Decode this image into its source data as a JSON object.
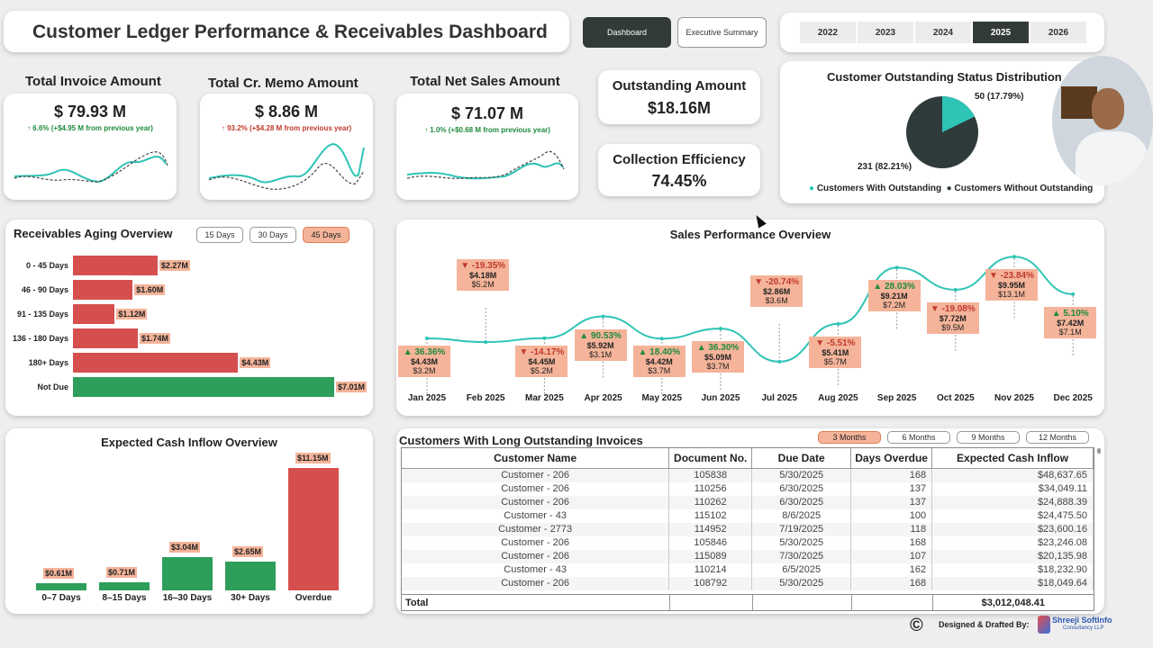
{
  "header": {
    "title": "Customer Ledger Performance & Receivables Dashboard"
  },
  "nav": {
    "dashboard": "Dashboard",
    "executive": "Executive Summary"
  },
  "years": [
    "2022",
    "2023",
    "2024",
    "2025",
    "2026"
  ],
  "active_year": "2025",
  "kpis": {
    "invoice": {
      "title": "Total Invoice Amount",
      "value": "$ 79.93 M",
      "change": "↑ 6.6% (+$4.95 M from previous year)"
    },
    "memo": {
      "title": "Total Cr. Memo Amount",
      "value": "$ 8.86 M",
      "change": "↑ 93.2% (+$4.28 M from previous year)"
    },
    "net": {
      "title": "Total Net Sales Amount",
      "value": "$ 71.07 M",
      "change": "↑ 1.0% (+$0.68 M from previous year)"
    },
    "outstanding": {
      "title": "Outstanding Amount",
      "value": "$18.16M"
    },
    "efficiency": {
      "title": "Collection Efficiency",
      "value": "74.45%"
    }
  },
  "status": {
    "title": "Customer Outstanding Status Distribution",
    "with_label": "50 (17.79%)",
    "without_label": "231 (82.21%)",
    "legend_with": "Customers With Outstanding",
    "legend_without": "Customers Without Outstanding",
    "with_pct": 17.79,
    "color_with": "#2ec4b6",
    "color_without": "#2f3b3b"
  },
  "aging": {
    "title": "Receivables Aging Overview",
    "buttons": [
      "15 Days",
      "30 Days",
      "45 Days"
    ],
    "active_button": "45 Days",
    "max": 7.01,
    "rows": [
      {
        "label": "0 - 45 Days",
        "value": 2.27,
        "text": "$2.27M",
        "color": "#d64f4f"
      },
      {
        "label": "46 - 90 Days",
        "value": 1.6,
        "text": "$1.60M",
        "color": "#d64f4f"
      },
      {
        "label": "91 - 135 Days",
        "value": 1.12,
        "text": "$1.12M",
        "color": "#d64f4f"
      },
      {
        "label": "136 - 180 Days",
        "value": 1.74,
        "text": "$1.74M",
        "color": "#d64f4f"
      },
      {
        "label": "180+ Days",
        "value": 4.43,
        "text": "$4.43M",
        "color": "#d64f4f"
      },
      {
        "label": "Not Due",
        "value": 7.01,
        "text": "$7.01M",
        "color": "#2e9e5b"
      }
    ]
  },
  "sales": {
    "title": "Sales Performance Overview",
    "months": [
      {
        "m": "Jan 2025",
        "pct": "36.36%",
        "dir": "up",
        "cur": "$4.43M",
        "prev": "$3.2M",
        "v": 4.43
      },
      {
        "m": "Feb 2025",
        "pct": "-19.35%",
        "dir": "down",
        "cur": "$4.18M",
        "prev": "$5.2M",
        "v": 4.18
      },
      {
        "m": "Mar 2025",
        "pct": "-14.17%",
        "dir": "down",
        "cur": "$4.45M",
        "prev": "$5.2M",
        "v": 4.45
      },
      {
        "m": "Apr 2025",
        "pct": "90.53%",
        "dir": "up",
        "cur": "$5.92M",
        "prev": "$3.1M",
        "v": 5.92
      },
      {
        "m": "May 2025",
        "pct": "18.40%",
        "dir": "up",
        "cur": "$4.42M",
        "prev": "$3.7M",
        "v": 4.42
      },
      {
        "m": "Jun 2025",
        "pct": "36.30%",
        "dir": "up",
        "cur": "$5.09M",
        "prev": "$3.7M",
        "v": 5.09
      },
      {
        "m": "Jul 2025",
        "pct": "-20.74%",
        "dir": "down",
        "cur": "$2.86M",
        "prev": "$3.6M",
        "v": 2.86
      },
      {
        "m": "Aug 2025",
        "pct": "-5.51%",
        "dir": "down",
        "cur": "$5.41M",
        "prev": "$5.7M",
        "v": 5.41
      },
      {
        "m": "Sep 2025",
        "pct": "28.03%",
        "dir": "up",
        "cur": "$9.21M",
        "prev": "$7.2M",
        "v": 9.21
      },
      {
        "m": "Oct 2025",
        "pct": "-19.08%",
        "dir": "down",
        "cur": "$7.72M",
        "prev": "$9.5M",
        "v": 7.72
      },
      {
        "m": "Nov 2025",
        "pct": "-23.84%",
        "dir": "down",
        "cur": "$9.95M",
        "prev": "$13.1M",
        "v": 9.95
      },
      {
        "m": "Dec 2025",
        "pct": "5.10%",
        "dir": "up",
        "cur": "$7.42M",
        "prev": "$7.1M",
        "v": 7.42
      }
    ]
  },
  "cash": {
    "title": "Expected Cash Inflow Overview",
    "max": 11.15,
    "bars": [
      {
        "label": "0–7 Days",
        "value": 0.61,
        "text": "$0.61M",
        "color": "#2e9e5b"
      },
      {
        "label": "8–15 Days",
        "value": 0.71,
        "text": "$0.71M",
        "color": "#2e9e5b"
      },
      {
        "label": "16–30 Days",
        "value": 3.04,
        "text": "$3.04M",
        "color": "#2e9e5b"
      },
      {
        "label": "30+ Days",
        "value": 2.65,
        "text": "$2.65M",
        "color": "#2e9e5b"
      },
      {
        "label": "Overdue",
        "value": 11.15,
        "text": "$11.15M",
        "color": "#d64f4f"
      }
    ]
  },
  "table": {
    "title": "Customers With Long Outstanding Invoices",
    "buttons": [
      "3 Months",
      "6 Months",
      "9 Months",
      "12 Months"
    ],
    "active_button": "3 Months",
    "headers": [
      "Customer Name",
      "Document No.",
      "Due Date",
      "Days Overdue",
      "Expected Cash Inflow"
    ],
    "rows": [
      [
        "Customer - 206",
        "105838",
        "5/30/2025",
        "168",
        "$48,637.65"
      ],
      [
        "Customer - 206",
        "110256",
        "6/30/2025",
        "137",
        "$34,049.11"
      ],
      [
        "Customer - 206",
        "110262",
        "6/30/2025",
        "137",
        "$24,888.39"
      ],
      [
        "Customer - 43",
        "115102",
        "8/6/2025",
        "100",
        "$24,475.50"
      ],
      [
        "Customer - 2773",
        "114952",
        "7/19/2025",
        "118",
        "$23,600.16"
      ],
      [
        "Customer - 206",
        "105846",
        "5/30/2025",
        "168",
        "$23,246.08"
      ],
      [
        "Customer - 206",
        "115089",
        "7/30/2025",
        "107",
        "$20,135.98"
      ],
      [
        "Customer - 43",
        "110214",
        "6/5/2025",
        "162",
        "$18,232.90"
      ],
      [
        "Customer - 206",
        "108792",
        "5/30/2025",
        "168",
        "$18,049.64"
      ]
    ],
    "total_label": "Total",
    "total_value": "$3,012,048.41"
  },
  "footer": {
    "copyright": "©",
    "designed": "Designed & Drafted By:",
    "brand": "Shreeji SoftInfo",
    "brand_sub": "Consultancy LLP"
  }
}
